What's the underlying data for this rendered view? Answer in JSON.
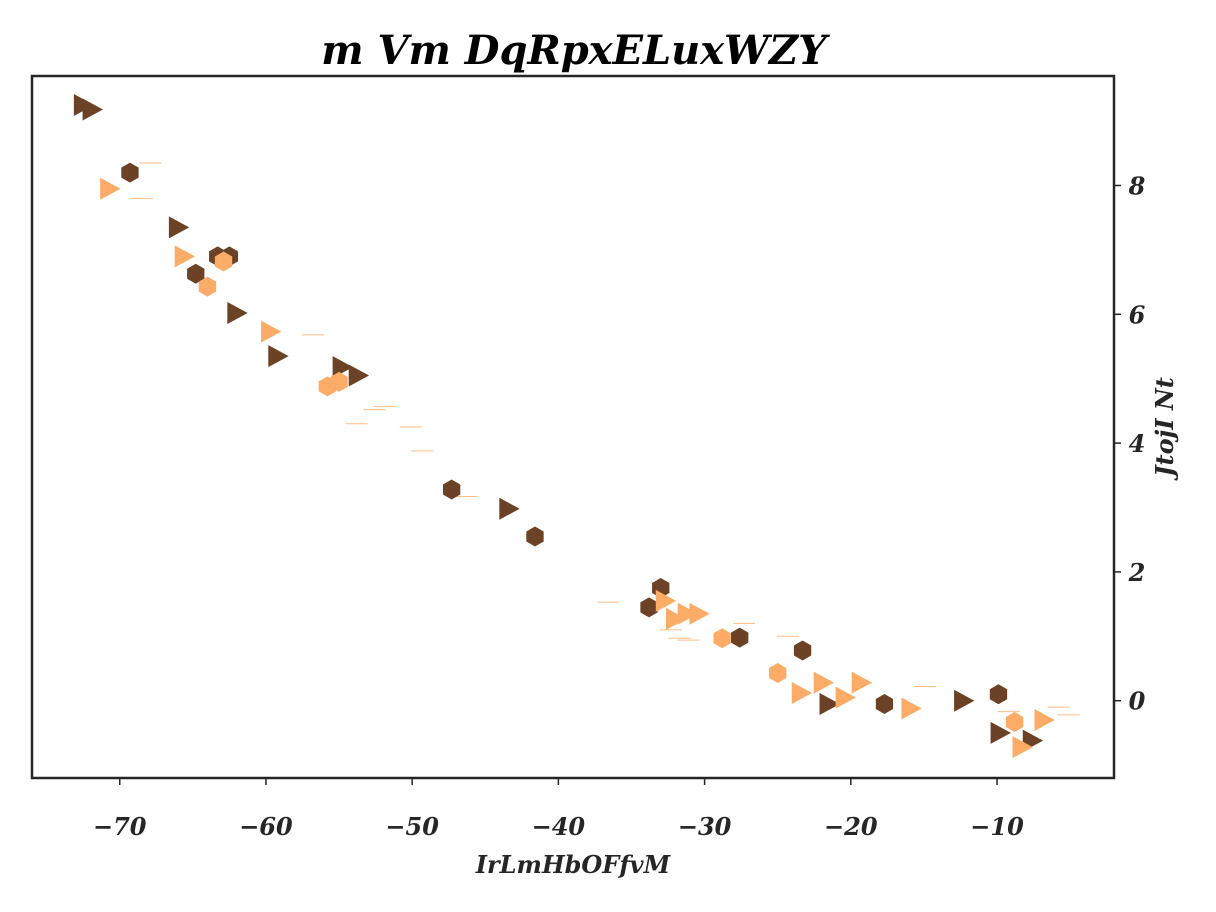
{
  "chart_data": {
    "type": "scatter",
    "title": "m Vm DqRpxELuxWZY",
    "xlabel": "IrLmHbOFfvM",
    "ylabel": "JtojI Nt",
    "xlim": [
      -76,
      -2
    ],
    "ylim": [
      -1.2,
      9.7
    ],
    "xticks": [
      -70,
      -60,
      -50,
      -40,
      -30,
      -20,
      -10
    ],
    "xtick_labels": [
      "−70",
      "−60",
      "−50",
      "−40",
      "−30",
      "−20",
      "−10"
    ],
    "yticks": [
      0,
      2,
      4,
      6,
      8
    ],
    "ytick_labels": [
      "0",
      "2",
      "4",
      "6",
      "8"
    ],
    "y_axis_side": "right",
    "grid": false,
    "legend": "none",
    "series": [
      {
        "marker": "hexagon",
        "color": "#6b4226",
        "points": [
          [
            -69.3,
            8.2
          ],
          [
            -63.3,
            6.9
          ],
          [
            -62.5,
            6.9
          ],
          [
            -64.8,
            6.63
          ],
          [
            -47.3,
            3.28
          ],
          [
            -41.6,
            2.55
          ],
          [
            -33.0,
            1.75
          ],
          [
            -33.8,
            1.45
          ],
          [
            -27.6,
            0.98
          ],
          [
            -23.3,
            0.78
          ],
          [
            -17.7,
            -0.05
          ],
          [
            -9.9,
            0.1
          ]
        ]
      },
      {
        "marker": "triangle-right",
        "color": "#6b4226",
        "points": [
          [
            -72.5,
            9.25
          ],
          [
            -71.9,
            9.18
          ],
          [
            -66.0,
            7.35
          ],
          [
            -62.0,
            6.02
          ],
          [
            -59.2,
            5.35
          ],
          [
            -54.8,
            5.18
          ],
          [
            -53.7,
            5.05
          ],
          [
            -43.4,
            2.98
          ],
          [
            -21.5,
            -0.05
          ],
          [
            -12.3,
            0.0
          ],
          [
            -9.8,
            -0.5
          ],
          [
            -7.6,
            -0.62
          ]
        ]
      },
      {
        "marker": "hexagon",
        "color": "#fdac68",
        "points": [
          [
            -64.0,
            6.43
          ],
          [
            -62.9,
            6.82
          ],
          [
            -55.8,
            4.88
          ],
          [
            -55.0,
            4.95
          ],
          [
            -28.8,
            0.97
          ],
          [
            -25.0,
            0.43
          ],
          [
            -8.8,
            -0.33
          ]
        ]
      },
      {
        "marker": "triangle-right",
        "color": "#fdac68",
        "points": [
          [
            -70.7,
            7.95
          ],
          [
            -65.6,
            6.9
          ],
          [
            -59.7,
            5.73
          ],
          [
            -32.7,
            1.55
          ],
          [
            -32.0,
            1.27
          ],
          [
            -31.2,
            1.35
          ],
          [
            -30.4,
            1.35
          ],
          [
            -23.4,
            0.12
          ],
          [
            -21.9,
            0.28
          ],
          [
            -20.4,
            0.05
          ],
          [
            -19.3,
            0.28
          ],
          [
            -15.9,
            -0.12
          ],
          [
            -8.3,
            -0.72
          ],
          [
            -6.8,
            -0.3
          ]
        ]
      }
    ],
    "faint_dashes": {
      "color": "#fdac68",
      "points": [
        [
          -67.9,
          8.35
        ],
        [
          -68.5,
          7.8
        ],
        [
          -56.8,
          5.68
        ],
        [
          -51.9,
          4.57
        ],
        [
          -52.6,
          4.52
        ],
        [
          -53.8,
          4.3
        ],
        [
          -50.1,
          4.25
        ],
        [
          -49.3,
          3.88
        ],
        [
          -46.3,
          3.17
        ],
        [
          -36.6,
          1.53
        ],
        [
          -32.3,
          1.1
        ],
        [
          -31.1,
          0.94
        ],
        [
          -31.7,
          0.97
        ],
        [
          -27.3,
          1.2
        ],
        [
          -24.3,
          1.0
        ],
        [
          -14.9,
          0.22
        ],
        [
          -9.2,
          -0.17
        ],
        [
          -5.8,
          -0.1
        ],
        [
          -5.1,
          -0.22
        ]
      ]
    }
  }
}
